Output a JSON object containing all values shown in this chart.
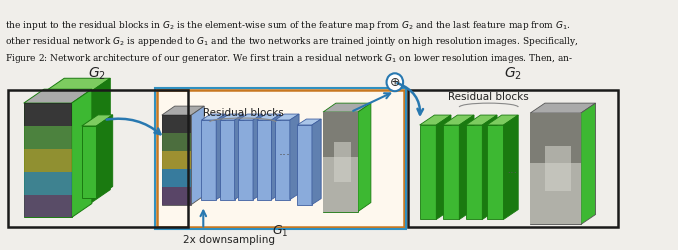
{
  "bg_color": "#f0eeea",
  "fig_width": 6.78,
  "fig_height": 2.5,
  "caption_line1": "Figure 2: Network architecture of our generator. We first train a residual network $G_1$ on lower resolution images. Then, an-",
  "caption_line2": "other residual network $G_2$ is appended to $G_1$ and the two networks are trained jointly on high resolution images. Specifically,",
  "caption_line3": "the input to the residual blocks in $G_2$ is the element-wise sum of the feature map from $G_2$ and the last feature map from $G_1$.",
  "green_color": "#3db832",
  "green_dark": "#1a7a10",
  "green_top": "#7dcc60",
  "blue_block_color": "#8aabdb",
  "blue_block_top": "#aac5e8",
  "blue_block_right": "#6080b0",
  "orange_border": "#c87820",
  "cyan_border": "#3090c0",
  "cyan_arrow": "#2878b0",
  "white": "#ffffff",
  "text_color": "#222222",
  "img_colors_left": [
    "#6040a0",
    "#3090a0",
    "#b0b030",
    "#70a030",
    "#505050"
  ],
  "img_colors_right": [
    "#404050",
    "#606870",
    "#808878",
    "#a0a898",
    "#b0b090"
  ]
}
